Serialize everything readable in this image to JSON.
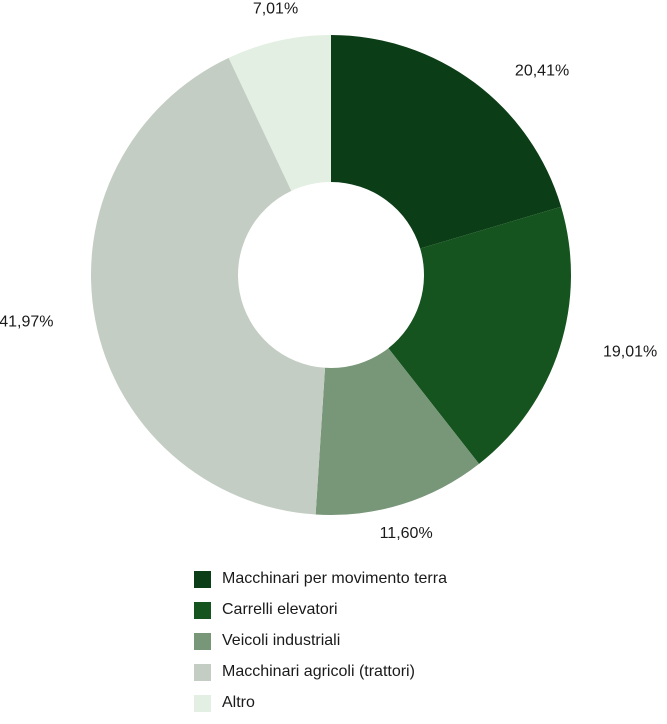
{
  "chart_data": {
    "type": "pie",
    "subtype": "donut",
    "start_angle": "12 o'clock",
    "direction": "clockwise",
    "legend_position": "bottom",
    "series": [
      {
        "name": "Macchinari per movimento terra",
        "value": 20.41,
        "label": "20,41%",
        "color": "#0b3d16"
      },
      {
        "name": "Carrelli elevatori",
        "value": 19.01,
        "label": "19,01%",
        "color": "#16541f"
      },
      {
        "name": "Veicoli industriali",
        "value": 11.6,
        "label": "11,60%",
        "color": "#789678"
      },
      {
        "name": "Macchinari agricoli (trattori)",
        "value": 41.97,
        "label": "41,97%",
        "color": "#c3cdc3"
      },
      {
        "name": "Altro",
        "value": 7.01,
        "label": "7,01%",
        "color": "#e2efe2"
      }
    ]
  }
}
